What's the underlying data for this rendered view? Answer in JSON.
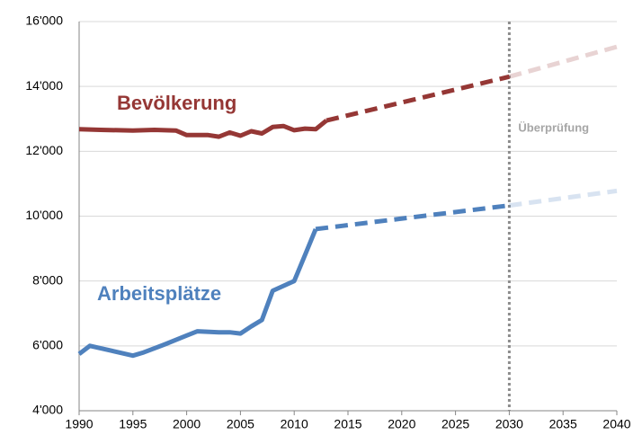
{
  "chart_data": {
    "type": "line",
    "xlim": [
      1990,
      2040
    ],
    "xticks": [
      1990,
      1995,
      2000,
      2005,
      2010,
      2015,
      2020,
      2025,
      2030,
      2035,
      2040
    ],
    "ylim": [
      4000,
      16000
    ],
    "yticks": [
      {
        "value": 4000,
        "label": "4'000"
      },
      {
        "value": 6000,
        "label": "6'000"
      },
      {
        "value": 8000,
        "label": "8'000"
      },
      {
        "value": 10000,
        "label": "10'000"
      },
      {
        "value": 12000,
        "label": "12'000"
      },
      {
        "value": 14000,
        "label": "14'000"
      },
      {
        "value": 16000,
        "label": "16'000"
      }
    ],
    "grid": true,
    "marker_x": 2030,
    "marker_label": "Überprüfung",
    "series": [
      {
        "name": "Bevölkerung",
        "color": "#953735",
        "x": [
          1990,
          1992,
          1995,
          1997,
          1999,
          2000,
          2002,
          2003,
          2004,
          2005,
          2006,
          2007,
          2008,
          2009,
          2010,
          2011,
          2012,
          2013
        ],
        "values": [
          12680,
          12660,
          12640,
          12660,
          12640,
          12500,
          12500,
          12450,
          12580,
          12480,
          12620,
          12550,
          12750,
          12780,
          12650,
          12700,
          12680,
          12950
        ],
        "projection_x": [
          2030,
          2040
        ],
        "projection_values": [
          14300,
          15220
        ]
      },
      {
        "name": "Arbeitsplätze",
        "color": "#4f81bd",
        "x": [
          1990,
          1991,
          1993,
          1995,
          1996,
          1998,
          2000,
          2001,
          2003,
          2004,
          2005,
          2006,
          2007,
          2008,
          2009,
          2010,
          2011,
          2012
        ],
        "values": [
          5750,
          6000,
          5850,
          5700,
          5800,
          6050,
          6320,
          6450,
          6420,
          6420,
          6380,
          6600,
          6800,
          7700,
          7850,
          8000,
          8800,
          9600
        ],
        "projection_x": [
          2030,
          2040
        ],
        "projection_values": [
          10330,
          10780
        ]
      }
    ]
  }
}
